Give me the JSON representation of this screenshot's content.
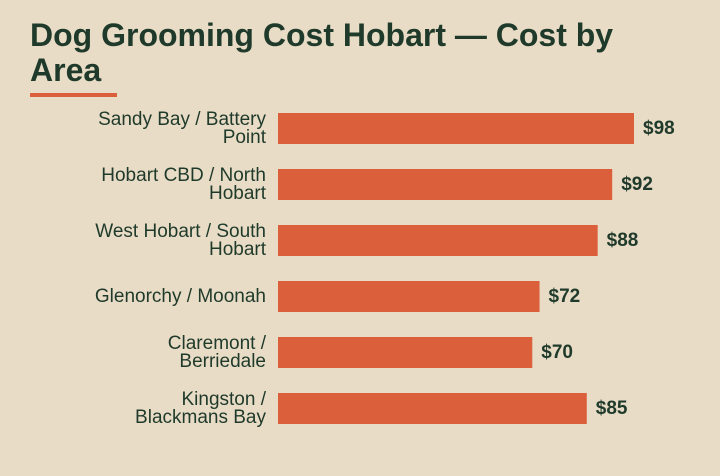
{
  "chart_data": {
    "type": "bar",
    "orientation": "horizontal",
    "title": "Dog Grooming Cost Hobart — Cost by Area",
    "categories": [
      "Sandy Bay / Battery Point",
      "Hobart CBD / North Hobart",
      "West Hobart / South Hobart",
      "Glenorchy / Moonah",
      "Claremont / Berriedale",
      "Kingston / Blackmans Bay"
    ],
    "values": [
      98,
      92,
      88,
      72,
      70,
      85
    ],
    "value_labels": [
      "$98",
      "$92",
      "$88",
      "$72",
      "$70",
      "$85"
    ],
    "value_prefix": "$",
    "xlim": [
      0,
      98
    ],
    "grid": false,
    "bar_color": "#dc5f3c"
  },
  "colors": {
    "background": "#e8dcc6",
    "text": "#1f3a2a",
    "accent": "#dc5f3c"
  }
}
